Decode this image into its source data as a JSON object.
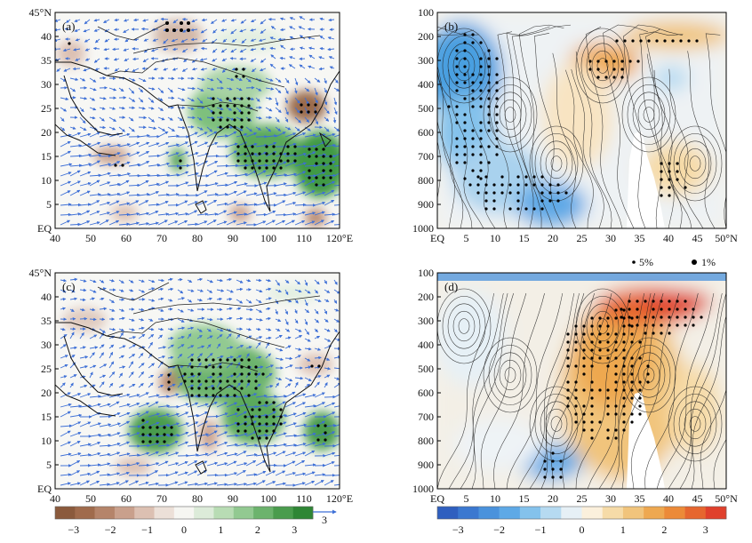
{
  "panels": [
    {
      "id": "a",
      "label": "(a)",
      "type": "map"
    },
    {
      "id": "b",
      "label": "(b)",
      "type": "section"
    },
    {
      "id": "c",
      "label": "(c)",
      "type": "map"
    },
    {
      "id": "d",
      "label": "(d)",
      "type": "section"
    }
  ],
  "map_axes": {
    "x_ticks": [
      "40",
      "50",
      "60",
      "70",
      "80",
      "90",
      "100",
      "110",
      "120°E"
    ],
    "y_ticks": [
      "EQ",
      "5",
      "10",
      "15",
      "20",
      "25",
      "30",
      "35",
      "40",
      "45°N"
    ]
  },
  "section_axes": {
    "x_ticks": [
      "EQ",
      "5",
      "10",
      "15",
      "20",
      "25",
      "30",
      "35",
      "40",
      "45",
      "50°N"
    ],
    "y_ticks": [
      "100",
      "200",
      "300",
      "400",
      "500",
      "600",
      "700",
      "800",
      "900",
      "1000"
    ]
  },
  "significance_legend": {
    "five_percent": "5%",
    "one_percent": "1%"
  },
  "vector_scale_label": "3",
  "colorbar_left": {
    "tick_labels": [
      "−3",
      "−2",
      "−1",
      "0",
      "1",
      "2",
      "3"
    ],
    "colors": [
      "#8b5a3c",
      "#a06b4c",
      "#b5846a",
      "#c9a08c",
      "#dcc0b2",
      "#ece0d8",
      "#f6f6f2",
      "#dcebd9",
      "#b8dcb4",
      "#92c991",
      "#6cb36d",
      "#4a9c4d",
      "#2f8635"
    ]
  },
  "colorbar_right": {
    "tick_labels": [
      "−3",
      "−2",
      "−1",
      "0",
      "1",
      "2",
      "3"
    ],
    "colors": [
      "#2f5fbf",
      "#3b78d0",
      "#4a92dc",
      "#5ea9e6",
      "#84c2ec",
      "#b6daf1",
      "#e6f0f6",
      "#fbf0dc",
      "#f6dba8",
      "#f1c47c",
      "#eea850",
      "#ec8a38",
      "#e6662f",
      "#e0402c"
    ]
  }
}
